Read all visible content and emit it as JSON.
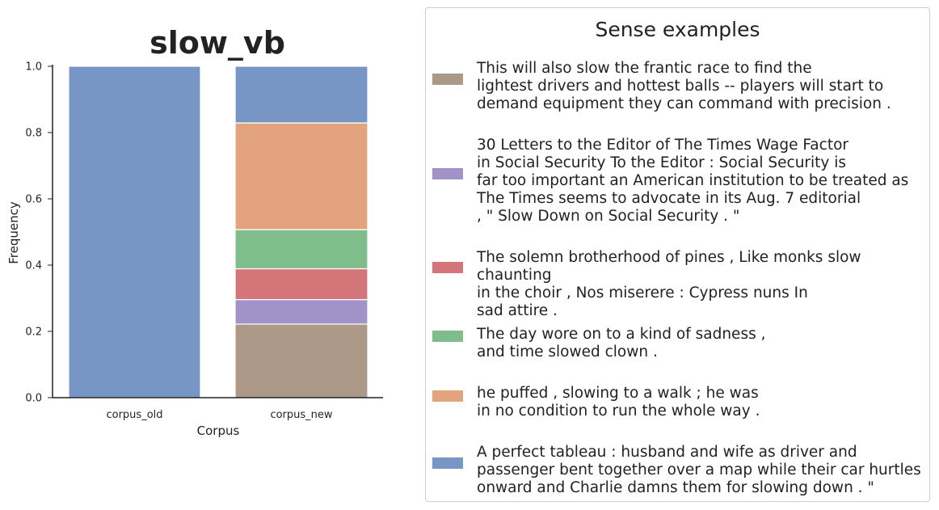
{
  "chart_data": {
    "type": "bar",
    "stacked": true,
    "title": "slow_vb",
    "xlabel": "Corpus",
    "ylabel": "Frequency",
    "ylim": [
      0,
      1.0
    ],
    "yticks": [
      "0.0",
      "0.2",
      "0.4",
      "0.6",
      "0.8",
      "1.0"
    ],
    "categories": [
      "corpus_old",
      "corpus_new"
    ],
    "series": [
      {
        "color": "#ab9886",
        "values": [
          0,
          0.222
        ]
      },
      {
        "color": "#a193c7",
        "values": [
          0,
          0.074
        ]
      },
      {
        "color": "#d4757a",
        "values": [
          0,
          0.093
        ]
      },
      {
        "color": "#80bd8d",
        "values": [
          0,
          0.118
        ]
      },
      {
        "color": "#e3a37c",
        "values": [
          0,
          0.322
        ]
      },
      {
        "color": "#7896c5",
        "values": [
          1.0,
          0.171
        ]
      }
    ],
    "legend": {
      "title": "Sense examples",
      "placement": "right",
      "entries": [
        {
          "color": "#ab9886",
          "text": "This will also slow the frantic race to find the\nlightest drivers and hottest balls -- players will start to\ndemand equipment they can command with precision ."
        },
        {
          "color": "#a193c7",
          "text": "30 Letters to the Editor of The Times Wage Factor\nin Social Security To the Editor : Social Security is\nfar too important an American institution to be treated as\nThe Times seems to advocate in its Aug. 7 editorial\n, \" Slow Down on Social Security . \""
        },
        {
          "color": "#d4757a",
          "text": "The solemn brotherhood of pines , Like monks slow chaunting\nin the choir , Nos miserere : Cypress nuns In\nsad attire ."
        },
        {
          "color": "#80bd8d",
          "text": "The day wore on to a kind of sadness ,\nand time slowed clown ."
        },
        {
          "color": "#e3a37c",
          "text": "he puffed , slowing to a walk ; he was\nin no condition to run the whole way ."
        },
        {
          "color": "#7896c5",
          "text": "A perfect tableau : husband and wife as driver and\npassenger bent together over a map while their car hurtles\nonward and Charlie damns them for slowing down . \""
        }
      ]
    }
  }
}
